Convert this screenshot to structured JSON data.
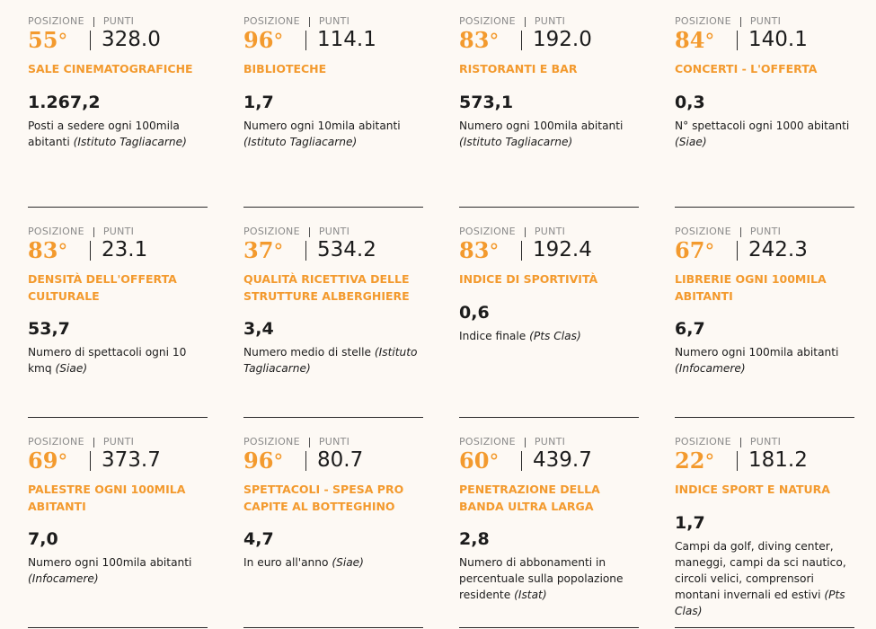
{
  "labels": {
    "position": "POSIZIONE",
    "points": "PUNTI"
  },
  "colors": {
    "accent": "#f39a2e",
    "background": "#fdf9f4",
    "text": "#1c1c1c"
  },
  "cards": [
    {
      "rank": "55",
      "points": "328.0",
      "title": "SALE CINEMATOGRAFICHE",
      "value": "1.267,2",
      "desc": "Posti a sedere ogni 100mila abitanti",
      "source": "(Istituto Tagliacarne)"
    },
    {
      "rank": "96",
      "points": "114.1",
      "title": "BIBLIOTECHE",
      "value": "1,7",
      "desc": "Numero ogni 10mila abitanti",
      "source": "(Istituto Tagliacarne)"
    },
    {
      "rank": "83",
      "points": "192.0",
      "title": "RISTORANTI E BAR",
      "value": "573,1",
      "desc": "Numero ogni 100mila abitanti",
      "source": "(Istituto Tagliacarne)"
    },
    {
      "rank": "84",
      "points": "140.1",
      "title": "CONCERTI - L'OFFERTA",
      "value": "0,3",
      "desc": "N° spettacoli ogni 1000 abitanti",
      "source": "(Siae)"
    },
    {
      "rank": "83",
      "points": "23.1",
      "title": "DENSITÀ DELL'OFFERTA CULTURALE",
      "value": "53,7",
      "desc": "Numero di spettacoli ogni 10 kmq",
      "source": "(Siae)"
    },
    {
      "rank": "37",
      "points": "534.2",
      "title": "QUALITÀ RICETTIVA DELLE STRUTTURE ALBERGHIERE",
      "value": "3,4",
      "desc": "Numero medio di stelle",
      "source": "(Istituto Tagliacarne)"
    },
    {
      "rank": "83",
      "points": "192.4",
      "title": "INDICE DI SPORTIVITÀ",
      "value": "0,6",
      "desc": "Indice finale",
      "source": "(Pts Clas)"
    },
    {
      "rank": "67",
      "points": "242.3",
      "title": "LIBRERIE OGNI 100MILA ABITANTI",
      "value": "6,7",
      "desc": "Numero ogni 100mila abitanti",
      "source": "(Infocamere)"
    },
    {
      "rank": "69",
      "points": "373.7",
      "title": "PALESTRE OGNI 100MILA ABITANTI",
      "value": "7,0",
      "desc": "Numero ogni 100mila abitanti",
      "source": "(Infocamere)"
    },
    {
      "rank": "96",
      "points": "80.7",
      "title": "SPETTACOLI - SPESA PRO CAPITE AL BOTTEGHINO",
      "value": "4,7",
      "desc": "In euro all'anno",
      "source": "(Siae)"
    },
    {
      "rank": "60",
      "points": "439.7",
      "title": "PENETRAZIONE DELLA BANDA ULTRA LARGA",
      "value": "2,8",
      "desc": "Numero di abbonamenti in percentuale sulla popolazione residente",
      "source": "(Istat)"
    },
    {
      "rank": "22",
      "points": "181.2",
      "title": "INDICE SPORT E NATURA",
      "value": "1,7",
      "desc": "Campi da golf, diving center, maneggi, campi da sci nautico, circoli velici, comprensori montani invernali ed estivi",
      "source": "(Pts Clas)"
    }
  ]
}
